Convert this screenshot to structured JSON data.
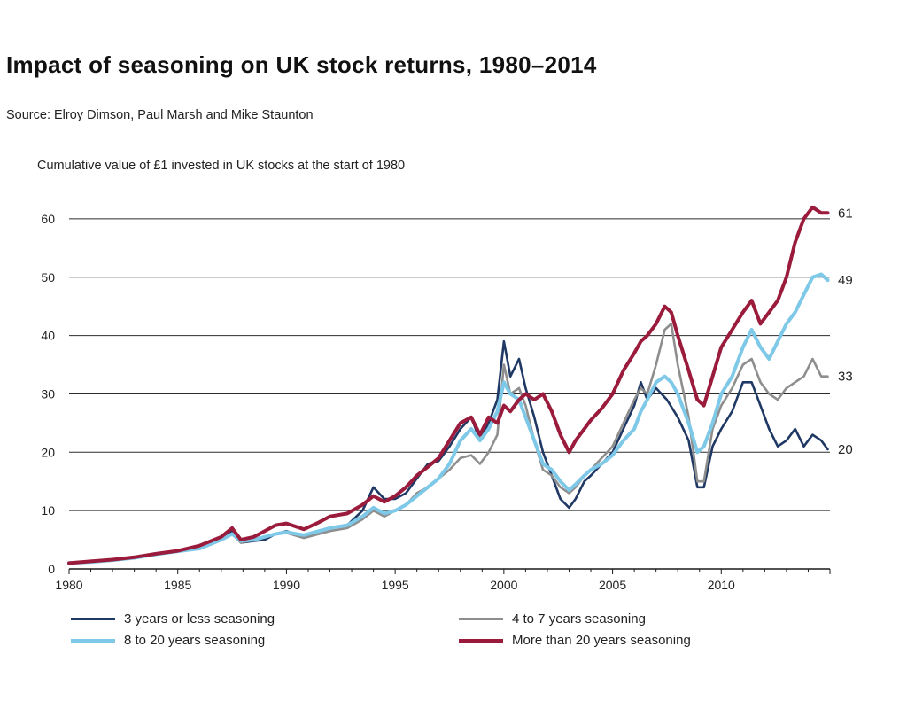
{
  "header": {
    "title": "Impact of seasoning on UK stock returns, 1980–2014",
    "source": "Source: Elroy Dimson, Paul Marsh and Mike Staunton"
  },
  "chart_data": {
    "type": "line",
    "subtitle": "Cumulative value of £1 invested in UK stocks at the start of 1980",
    "xlabel": "",
    "ylabel": "",
    "xlim": [
      1980,
      2015
    ],
    "ylim": [
      0,
      65
    ],
    "xticks": [
      1980,
      1985,
      1990,
      1995,
      2000,
      2005,
      2010
    ],
    "yticks": [
      0,
      10,
      20,
      30,
      40,
      50,
      60
    ],
    "grid": "horizontal",
    "legend_position": "bottom",
    "series": [
      {
        "name": "3 years or less seasoning",
        "color": "#1f3864",
        "end_label": "20",
        "points": [
          [
            1980,
            1
          ],
          [
            1981,
            1.3
          ],
          [
            1982,
            1.6
          ],
          [
            1983,
            2
          ],
          [
            1984,
            2.6
          ],
          [
            1985,
            3
          ],
          [
            1986,
            3.8
          ],
          [
            1987,
            5.5
          ],
          [
            1987.5,
            6.5
          ],
          [
            1987.9,
            4.5
          ],
          [
            1988.5,
            4.8
          ],
          [
            1989,
            5
          ],
          [
            1989.5,
            6
          ],
          [
            1990,
            6.5
          ],
          [
            1990.8,
            5.5
          ],
          [
            1991.5,
            6.5
          ],
          [
            1992,
            7
          ],
          [
            1992.8,
            7.5
          ],
          [
            1993.5,
            10
          ],
          [
            1994,
            14
          ],
          [
            1994.5,
            12
          ],
          [
            1995,
            12
          ],
          [
            1995.5,
            13
          ],
          [
            1996,
            15.5
          ],
          [
            1996.5,
            18
          ],
          [
            1997,
            18.5
          ],
          [
            1997.5,
            21
          ],
          [
            1998,
            24
          ],
          [
            1998.5,
            26
          ],
          [
            1998.9,
            22
          ],
          [
            1999.3,
            25
          ],
          [
            1999.7,
            29
          ],
          [
            2000,
            39
          ],
          [
            2000.3,
            33
          ],
          [
            2000.7,
            36
          ],
          [
            2001,
            31
          ],
          [
            2001.4,
            26
          ],
          [
            2001.8,
            20
          ],
          [
            2002.2,
            16
          ],
          [
            2002.6,
            12
          ],
          [
            2003,
            10.5
          ],
          [
            2003.3,
            12
          ],
          [
            2003.7,
            15
          ],
          [
            2004,
            16
          ],
          [
            2004.5,
            18
          ],
          [
            2005,
            20
          ],
          [
            2005.5,
            24
          ],
          [
            2006,
            28
          ],
          [
            2006.3,
            32
          ],
          [
            2006.6,
            29
          ],
          [
            2007,
            31
          ],
          [
            2007.5,
            29
          ],
          [
            2008,
            26
          ],
          [
            2008.5,
            22
          ],
          [
            2008.9,
            14
          ],
          [
            2009.2,
            14
          ],
          [
            2009.6,
            21
          ],
          [
            2010,
            24
          ],
          [
            2010.5,
            27
          ],
          [
            2011,
            32
          ],
          [
            2011.4,
            32
          ],
          [
            2011.8,
            28
          ],
          [
            2012.2,
            24
          ],
          [
            2012.6,
            21
          ],
          [
            2013,
            22
          ],
          [
            2013.4,
            24
          ],
          [
            2013.8,
            21
          ],
          [
            2014.2,
            23
          ],
          [
            2014.6,
            22
          ],
          [
            2014.9,
            20.5
          ]
        ]
      },
      {
        "name": "4 to 7 years seasoning",
        "color": "#8e8e8e",
        "end_label": "33",
        "points": [
          [
            1980,
            1
          ],
          [
            1981,
            1.2
          ],
          [
            1982,
            1.5
          ],
          [
            1983,
            1.9
          ],
          [
            1984,
            2.5
          ],
          [
            1985,
            3
          ],
          [
            1986,
            3.5
          ],
          [
            1987,
            5
          ],
          [
            1987.5,
            6
          ],
          [
            1987.9,
            4.5
          ],
          [
            1988.5,
            5
          ],
          [
            1989,
            5.5
          ],
          [
            1989.5,
            6
          ],
          [
            1990,
            6.2
          ],
          [
            1990.8,
            5.3
          ],
          [
            1991.5,
            6
          ],
          [
            1992,
            6.5
          ],
          [
            1992.8,
            7
          ],
          [
            1993.5,
            8.5
          ],
          [
            1994,
            10
          ],
          [
            1994.5,
            9
          ],
          [
            1995,
            10
          ],
          [
            1995.5,
            11
          ],
          [
            1996,
            13
          ],
          [
            1996.5,
            14
          ],
          [
            1997,
            15.5
          ],
          [
            1997.5,
            17
          ],
          [
            1998,
            19
          ],
          [
            1998.5,
            19.5
          ],
          [
            1998.9,
            18
          ],
          [
            1999.3,
            20
          ],
          [
            1999.7,
            23
          ],
          [
            2000,
            35
          ],
          [
            2000.3,
            30
          ],
          [
            2000.7,
            31
          ],
          [
            2001,
            28
          ],
          [
            2001.4,
            22
          ],
          [
            2001.8,
            17
          ],
          [
            2002.2,
            16
          ],
          [
            2002.6,
            14
          ],
          [
            2003,
            13
          ],
          [
            2003.3,
            14
          ],
          [
            2003.7,
            16
          ],
          [
            2004,
            17
          ],
          [
            2004.5,
            19
          ],
          [
            2005,
            21
          ],
          [
            2005.5,
            25
          ],
          [
            2006,
            29
          ],
          [
            2006.3,
            31
          ],
          [
            2006.6,
            30
          ],
          [
            2007,
            35
          ],
          [
            2007.4,
            41
          ],
          [
            2007.7,
            42
          ],
          [
            2008,
            35
          ],
          [
            2008.5,
            26
          ],
          [
            2008.9,
            15
          ],
          [
            2009.2,
            15
          ],
          [
            2009.6,
            24
          ],
          [
            2010,
            28
          ],
          [
            2010.5,
            31
          ],
          [
            2011,
            35
          ],
          [
            2011.4,
            36
          ],
          [
            2011.8,
            32
          ],
          [
            2012.2,
            30
          ],
          [
            2012.6,
            29
          ],
          [
            2013,
            31
          ],
          [
            2013.4,
            32
          ],
          [
            2013.8,
            33
          ],
          [
            2014.2,
            36
          ],
          [
            2014.6,
            33
          ],
          [
            2014.9,
            33
          ]
        ]
      },
      {
        "name": "8 to 20 years seasoning",
        "color": "#7ec8e8",
        "end_label": "49",
        "points": [
          [
            1980,
            1
          ],
          [
            1981,
            1.2
          ],
          [
            1982,
            1.5
          ],
          [
            1983,
            1.9
          ],
          [
            1984,
            2.5
          ],
          [
            1985,
            3
          ],
          [
            1986,
            3.5
          ],
          [
            1987,
            5
          ],
          [
            1987.5,
            6
          ],
          [
            1987.9,
            4.8
          ],
          [
            1988.5,
            5
          ],
          [
            1989,
            5.5
          ],
          [
            1989.5,
            6
          ],
          [
            1990,
            6.3
          ],
          [
            1990.8,
            5.8
          ],
          [
            1991.5,
            6.5
          ],
          [
            1992,
            7
          ],
          [
            1992.8,
            7.5
          ],
          [
            1993.5,
            9
          ],
          [
            1994,
            10.5
          ],
          [
            1994.5,
            9.5
          ],
          [
            1995,
            10
          ],
          [
            1995.5,
            11
          ],
          [
            1996,
            12.5
          ],
          [
            1996.5,
            14
          ],
          [
            1997,
            15.5
          ],
          [
            1997.5,
            18
          ],
          [
            1998,
            22
          ],
          [
            1998.5,
            24
          ],
          [
            1998.9,
            22
          ],
          [
            1999.3,
            24
          ],
          [
            1999.7,
            27
          ],
          [
            2000,
            32
          ],
          [
            2000.3,
            30
          ],
          [
            2000.7,
            29
          ],
          [
            2001,
            26
          ],
          [
            2001.4,
            22
          ],
          [
            2001.8,
            18
          ],
          [
            2002.2,
            17
          ],
          [
            2002.6,
            15
          ],
          [
            2003,
            13.5
          ],
          [
            2003.3,
            14.5
          ],
          [
            2003.7,
            16
          ],
          [
            2004,
            17
          ],
          [
            2004.5,
            18
          ],
          [
            2005,
            19.5
          ],
          [
            2005.5,
            22
          ],
          [
            2006,
            24
          ],
          [
            2006.3,
            27
          ],
          [
            2006.6,
            29
          ],
          [
            2007,
            32
          ],
          [
            2007.4,
            33
          ],
          [
            2007.7,
            32
          ],
          [
            2008,
            30
          ],
          [
            2008.5,
            25
          ],
          [
            2008.9,
            20
          ],
          [
            2009.2,
            21
          ],
          [
            2009.6,
            25
          ],
          [
            2010,
            30
          ],
          [
            2010.5,
            33
          ],
          [
            2011,
            38
          ],
          [
            2011.4,
            41
          ],
          [
            2011.8,
            38
          ],
          [
            2012.2,
            36
          ],
          [
            2012.6,
            39
          ],
          [
            2013,
            42
          ],
          [
            2013.4,
            44
          ],
          [
            2013.8,
            47
          ],
          [
            2014.2,
            50
          ],
          [
            2014.6,
            50.5
          ],
          [
            2014.9,
            49.5
          ]
        ]
      },
      {
        "name": "More than 20 years seasoning",
        "color": "#9b1b3c",
        "end_label": "61",
        "points": [
          [
            1980,
            1
          ],
          [
            1981,
            1.3
          ],
          [
            1982,
            1.6
          ],
          [
            1983,
            2
          ],
          [
            1984,
            2.6
          ],
          [
            1985,
            3.1
          ],
          [
            1986,
            4
          ],
          [
            1987,
            5.5
          ],
          [
            1987.5,
            7
          ],
          [
            1987.9,
            5
          ],
          [
            1988.5,
            5.5
          ],
          [
            1989,
            6.5
          ],
          [
            1989.5,
            7.5
          ],
          [
            1990,
            7.8
          ],
          [
            1990.8,
            6.8
          ],
          [
            1991.5,
            8
          ],
          [
            1992,
            9
          ],
          [
            1992.8,
            9.5
          ],
          [
            1993.5,
            11
          ],
          [
            1994,
            12.5
          ],
          [
            1994.5,
            11.5
          ],
          [
            1995,
            12.5
          ],
          [
            1995.5,
            14
          ],
          [
            1996,
            16
          ],
          [
            1996.5,
            17.5
          ],
          [
            1997,
            19
          ],
          [
            1997.5,
            22
          ],
          [
            1998,
            25
          ],
          [
            1998.5,
            26
          ],
          [
            1998.9,
            23
          ],
          [
            1999.3,
            26
          ],
          [
            1999.7,
            25
          ],
          [
            2000,
            28
          ],
          [
            2000.3,
            27
          ],
          [
            2000.7,
            29
          ],
          [
            2001,
            30
          ],
          [
            2001.4,
            29
          ],
          [
            2001.8,
            30
          ],
          [
            2002.2,
            27
          ],
          [
            2002.6,
            23
          ],
          [
            2003,
            20
          ],
          [
            2003.3,
            22
          ],
          [
            2003.7,
            24
          ],
          [
            2004,
            25.5
          ],
          [
            2004.5,
            27.5
          ],
          [
            2005,
            30
          ],
          [
            2005.5,
            34
          ],
          [
            2006,
            37
          ],
          [
            2006.3,
            39
          ],
          [
            2006.6,
            40
          ],
          [
            2007,
            42
          ],
          [
            2007.4,
            45
          ],
          [
            2007.7,
            44
          ],
          [
            2008,
            40
          ],
          [
            2008.5,
            34
          ],
          [
            2008.9,
            29
          ],
          [
            2009.2,
            28
          ],
          [
            2009.6,
            33
          ],
          [
            2010,
            38
          ],
          [
            2010.5,
            41
          ],
          [
            2011,
            44
          ],
          [
            2011.4,
            46
          ],
          [
            2011.8,
            42
          ],
          [
            2012.2,
            44
          ],
          [
            2012.6,
            46
          ],
          [
            2013,
            50
          ],
          [
            2013.4,
            56
          ],
          [
            2013.8,
            60
          ],
          [
            2014.2,
            62
          ],
          [
            2014.6,
            61
          ],
          [
            2014.9,
            61
          ]
        ]
      }
    ]
  }
}
